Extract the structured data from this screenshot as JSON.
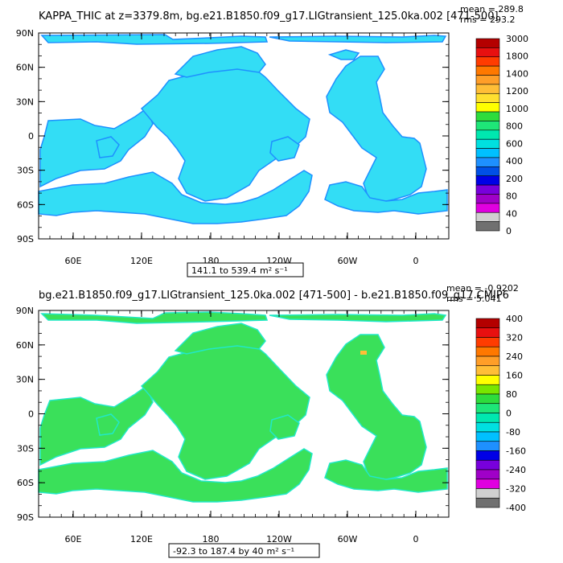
{
  "chart_data": [
    {
      "type": "heatmap",
      "title": "KAPPA_THIC at z=3379.8m, bg.e21.B1850.f09_g17.LIGtransient_125.0ka.002 [471-500]",
      "stats": {
        "mean": "mean = 289.8",
        "rms": "rms = 293.2"
      },
      "range_label": "141.1 to 539.4",
      "units": "m² s⁻¹",
      "x_tick_labels": [
        "60E",
        "120E",
        "180",
        "120W",
        "60W",
        "0"
      ],
      "y_tick_labels": [
        "90N",
        "60N",
        "30N",
        "0",
        "30S",
        "60S",
        "90S"
      ],
      "colorbar": {
        "labels": [
          "3000",
          "1800",
          "1400",
          "1200",
          "1000",
          "800",
          "600",
          "400",
          "200",
          "80",
          "40",
          "0"
        ],
        "colors": [
          "#b40000",
          "#e81010",
          "#ff3c00",
          "#ff7800",
          "#ff9e28",
          "#ffbe37",
          "#ffe030",
          "#ffff00",
          "#2edc3c",
          "#1ee678",
          "#00e8b0",
          "#00e0e0",
          "#00c0ff",
          "#1e90ff",
          "#0050e6",
          "#0000e6",
          "#7800dc",
          "#a000c8",
          "#e000e0",
          "#d0d0d0",
          "#707070"
        ]
      },
      "dominant_color": "#33ddf5",
      "accent_color": "#1e90ff"
    },
    {
      "type": "heatmap",
      "title": "bg.e21.B1850.f09_g17.LIGtransient_125.0ka.002 [471-500] - b.e21.B1850.f09_g17.CMIP6",
      "stats": {
        "mean": "mean = -0.9202",
        "rms": "rms = 5.041"
      },
      "range_label": "-92.3 to 187.4 by 40",
      "units": "m² s⁻¹",
      "x_tick_labels": [
        "60E",
        "120E",
        "180",
        "120W",
        "60W",
        "0"
      ],
      "y_tick_labels": [
        "90N",
        "60N",
        "30N",
        "0",
        "30S",
        "60S",
        "90S"
      ],
      "colorbar": {
        "labels": [
          "400",
          "320",
          "240",
          "160",
          "80",
          "0",
          "-80",
          "-160",
          "-240",
          "-320",
          "-400"
        ],
        "colors": [
          "#b40000",
          "#e81010",
          "#ff3c00",
          "#ff7800",
          "#ff9e28",
          "#ffbe37",
          "#ffff00",
          "#78e600",
          "#2edc3c",
          "#1ee678",
          "#00e8b0",
          "#00e0e0",
          "#00c0ff",
          "#1e90ff",
          "#0000e6",
          "#7800dc",
          "#a000c8",
          "#e000e0",
          "#d0d0d0",
          "#707070"
        ]
      },
      "dominant_color": "#3ae05a",
      "accent_color": "#22e8c8"
    }
  ]
}
